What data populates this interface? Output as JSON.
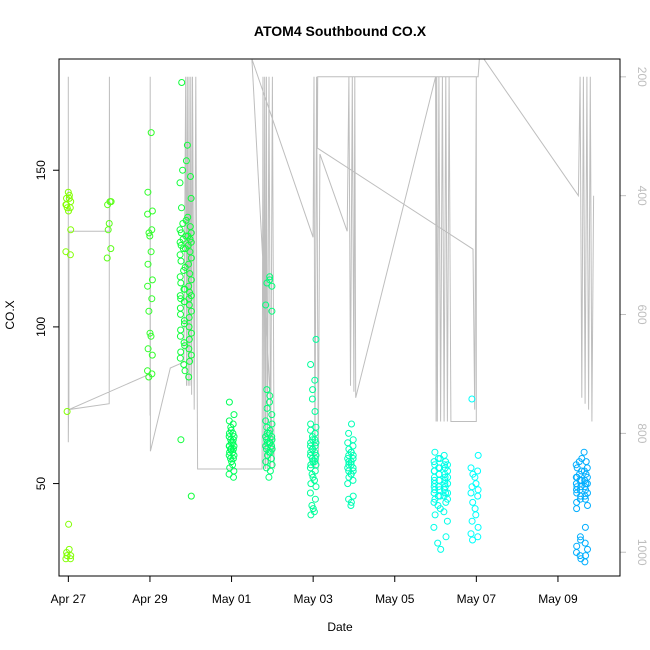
{
  "chart_data": {
    "type": "scatter",
    "title": "ATOM4 Southbound CO.X",
    "xlabel": "Date",
    "ylabel": "CO.X",
    "xlim": [
      "2016-04-26T18:30",
      "2016-05-10T12:30"
    ],
    "ylim": [
      20.5,
      185.5
    ],
    "yticks": [
      50,
      100,
      150
    ],
    "xtick_labels": [
      "Apr 27",
      "Apr 29",
      "May 01",
      "May 03",
      "May 05",
      "May 07",
      "May 09"
    ],
    "xtick_dates": [
      "2016-04-27",
      "2016-04-29",
      "2016-05-01",
      "2016-05-03",
      "2016-05-05",
      "2016-05-07",
      "2016-05-09"
    ],
    "secondary_axis": {
      "side": "right",
      "reversed": true,
      "lim": [
        1040,
        170
      ],
      "ticks": [
        200,
        400,
        600,
        800,
        1000
      ],
      "line_color": "#bebebe",
      "profile": [
        [
          "2016-04-27T00:00",
          200
        ],
        [
          "2016-04-27T00:00",
          815
        ],
        [
          "2016-04-27T00:10",
          760
        ],
        [
          "2016-04-28T00:00",
          750
        ],
        [
          "2016-04-28T00:10",
          200
        ],
        [
          "2016-04-28T00:20",
          460
        ],
        [
          "2016-04-27T00:20",
          460
        ],
        [
          "2016-04-27T00:20",
          760
        ],
        [
          "2016-04-29T00:00",
          700
        ],
        [
          "2016-04-29T00:05",
          770
        ],
        [
          "2016-04-29T00:10",
          200
        ],
        [
          "2016-04-29T00:15",
          830
        ],
        [
          "2016-04-29T12:00",
          690
        ],
        [
          "2016-04-29T20:00",
          680
        ],
        [
          "2016-04-29T21:00",
          200
        ],
        [
          "2016-04-29T21:30",
          720
        ],
        [
          "2016-04-29T22:00",
          200
        ],
        [
          "2016-04-29T22:30",
          720
        ],
        [
          "2016-04-29T23:00",
          200
        ],
        [
          "2016-04-29T23:30",
          720
        ],
        [
          "2016-04-30T00:00",
          200
        ],
        [
          "2016-04-30T00:30",
          735
        ],
        [
          "2016-04-30T01:00",
          200
        ],
        [
          "2016-04-30T02:00",
          760
        ],
        [
          "2016-04-30T03:00",
          200
        ],
        [
          "2016-04-30T04:00",
          860
        ],
        [
          "2016-05-01T18:00",
          860
        ],
        [
          "2016-05-01T18:30",
          200
        ],
        [
          "2016-05-01T19:00",
          860
        ],
        [
          "2016-05-01T19:30",
          200
        ],
        [
          "2016-05-01T20:00",
          860
        ],
        [
          "2016-05-01T20:30",
          200
        ],
        [
          "2016-05-01T21:00",
          860
        ],
        [
          "2016-05-01T22:00",
          200
        ],
        [
          "2016-05-01T23:00",
          860
        ],
        [
          "2016-05-02T00:00",
          200
        ],
        [
          "2016-05-02T01:00",
          860
        ],
        [
          "2016-05-01T12:00",
          170
        ],
        [
          "2016-05-03T00:00",
          470
        ],
        [
          "2016-05-03T00:30",
          200
        ],
        [
          "2016-05-03T01:00",
          860
        ],
        [
          "2016-05-03T02:00",
          200
        ],
        [
          "2016-05-03T03:00",
          860
        ],
        [
          "2016-05-03T04:00",
          330
        ],
        [
          "2016-05-03T20:00",
          460
        ],
        [
          "2016-05-03T21:00",
          200
        ],
        [
          "2016-05-03T22:00",
          720
        ],
        [
          "2016-05-03T23:00",
          200
        ],
        [
          "2016-05-04T00:00",
          730
        ],
        [
          "2016-05-04T00:30",
          200
        ],
        [
          "2016-05-04T01:00",
          740
        ],
        [
          "2016-05-06T00:00",
          200
        ],
        [
          "2016-05-06T00:20",
          780
        ],
        [
          "2016-05-06T00:40",
          200
        ],
        [
          "2016-05-06T01:00",
          780
        ],
        [
          "2016-05-06T02:00",
          200
        ],
        [
          "2016-05-06T03:00",
          780
        ],
        [
          "2016-05-06T04:00",
          200
        ],
        [
          "2016-05-06T05:00",
          780
        ],
        [
          "2016-05-06T06:00",
          200
        ],
        [
          "2016-05-06T07:00",
          780
        ],
        [
          "2016-05-06T08:00",
          200
        ],
        [
          "2016-05-06T09:00",
          780
        ],
        [
          "2016-05-07T00:00",
          780
        ],
        [
          "2016-05-07T00:00",
          200
        ],
        [
          "2016-05-06T23:00",
          760
        ],
        [
          "2016-05-06T22:00",
          490
        ],
        [
          "2016-05-03T02:30",
          320
        ],
        [
          "2016-05-03T02:40",
          200
        ],
        [
          "2016-05-07T01:00",
          200
        ],
        [
          "2016-05-07T02:00",
          160
        ],
        [
          "2016-05-09T12:00",
          400
        ],
        [
          "2016-05-09T13:00",
          200
        ],
        [
          "2016-05-09T14:00",
          740
        ],
        [
          "2016-05-09T15:00",
          200
        ],
        [
          "2016-05-09T16:00",
          750
        ],
        [
          "2016-05-09T17:00",
          200
        ],
        [
          "2016-05-09T18:00",
          760
        ],
        [
          "2016-05-09T19:00",
          200
        ],
        [
          "2016-05-09T20:00",
          780
        ],
        [
          "2016-05-09T21:00",
          400
        ]
      ]
    },
    "color_scale": [
      "#8cff00",
      "#00ff40",
      "#00ffb0",
      "#00ffff",
      "#0090ff"
    ],
    "clusters": [
      {
        "x": "2016-04-27T00:00",
        "dx": 0.06,
        "values": [
          143,
          142,
          141,
          140,
          139,
          138,
          138,
          137,
          141,
          139,
          131,
          124,
          123,
          73,
          37,
          29,
          28,
          27,
          26,
          26,
          27
        ]
      },
      {
        "x": "2016-04-28T00:00",
        "dx": 0.05,
        "values": [
          140,
          139,
          140,
          133,
          131,
          125,
          122
        ]
      },
      {
        "x": "2016-04-29T00:00",
        "dx": 0.06,
        "values": [
          162,
          143,
          137,
          136,
          131,
          130,
          129,
          124,
          120,
          115,
          113,
          109,
          105,
          98,
          97,
          93,
          91,
          86,
          85,
          84
        ]
      },
      {
        "x": "2016-04-29T21:00",
        "dx": 0.14,
        "values": [
          178,
          158,
          153,
          150,
          148,
          146,
          141,
          138,
          135,
          134,
          133,
          132,
          131,
          130,
          130,
          129,
          129,
          128,
          128,
          127,
          127,
          126,
          126,
          125,
          125,
          124,
          123,
          122,
          121,
          120,
          119,
          118,
          117,
          116,
          115,
          114,
          113,
          112,
          112,
          111,
          110,
          110,
          109,
          109,
          108,
          108,
          107,
          106,
          105,
          104,
          103,
          102,
          101,
          100,
          99,
          98,
          97,
          96,
          95,
          94,
          93,
          92,
          91,
          90,
          89,
          88,
          86,
          84,
          64,
          46
        ]
      },
      {
        "x": "2016-05-01T00:00",
        "dx": 0.06,
        "values": [
          76,
          72,
          70,
          69,
          68,
          67,
          66,
          66,
          65,
          65,
          64,
          64,
          63,
          63,
          62,
          62,
          62,
          61,
          61,
          61,
          60,
          60,
          59,
          59,
          58,
          58,
          57,
          56,
          55,
          54,
          53,
          52
        ]
      },
      {
        "x": "2016-05-01T22:00",
        "dx": 0.08,
        "values": [
          116,
          115,
          114,
          113,
          107,
          105,
          80,
          78,
          76,
          74,
          72,
          70,
          69,
          68,
          67,
          66,
          66,
          65,
          65,
          64,
          64,
          63,
          63,
          63,
          62,
          62,
          61,
          61,
          60,
          60,
          59,
          58,
          57,
          56,
          55,
          54,
          52
        ]
      },
      {
        "x": "2016-05-03T00:00",
        "dx": 0.07,
        "values": [
          96,
          88,
          83,
          80,
          77,
          73,
          69,
          68,
          67,
          66,
          65,
          64,
          64,
          63,
          63,
          62,
          62,
          61,
          61,
          60,
          60,
          59,
          59,
          58,
          58,
          57,
          57,
          56,
          56,
          55,
          54,
          53,
          52,
          51,
          50,
          49,
          47,
          45,
          43,
          42,
          41,
          40
        ]
      },
      {
        "x": "2016-05-03T22:00",
        "dx": 0.07,
        "values": [
          69,
          66,
          64,
          63,
          62,
          61,
          60,
          60,
          59,
          59,
          58,
          58,
          57,
          57,
          56,
          56,
          55,
          55,
          54,
          54,
          53,
          53,
          52,
          51,
          50,
          46,
          45,
          44,
          43
        ]
      },
      {
        "x": "2016-05-06T03:00",
        "dx": 0.17,
        "values": [
          60,
          59,
          58,
          58,
          57,
          57,
          56,
          56,
          56,
          55,
          55,
          55,
          54,
          54,
          54,
          53,
          53,
          53,
          52,
          52,
          52,
          51,
          51,
          51,
          51,
          50,
          50,
          50,
          49,
          49,
          49,
          48,
          48,
          48,
          47,
          47,
          47,
          46,
          46,
          46,
          45,
          45,
          44,
          44,
          43,
          42,
          41,
          40,
          38,
          36,
          33,
          31,
          29
        ]
      },
      {
        "x": "2016-05-06T23:00",
        "dx": 0.09,
        "values": [
          77,
          59,
          55,
          54,
          53,
          52,
          50,
          49,
          48,
          47,
          46,
          44,
          42,
          40,
          38,
          36,
          34,
          33,
          32
        ]
      },
      {
        "x": "2016-05-09T14:00",
        "dx": 0.14,
        "values": [
          60,
          58,
          57,
          57,
          56,
          55,
          55,
          54,
          54,
          53,
          53,
          52,
          52,
          52,
          51,
          51,
          51,
          50,
          50,
          50,
          49,
          49,
          49,
          48,
          48,
          48,
          47,
          47,
          46,
          46,
          45,
          45,
          44,
          43,
          42,
          36,
          33,
          32,
          31,
          30,
          29,
          28,
          27,
          27,
          26,
          25
        ]
      }
    ]
  }
}
